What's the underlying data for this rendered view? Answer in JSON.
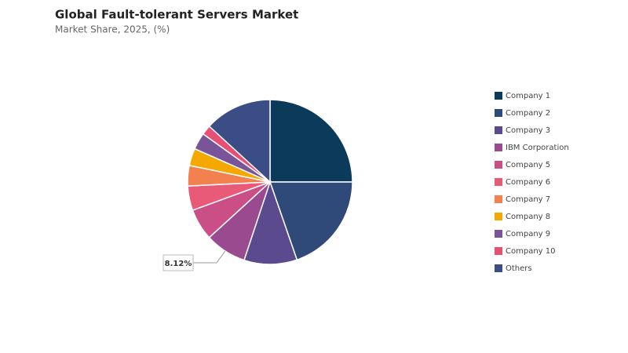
{
  "chart_data": {
    "type": "pie",
    "title": "Global Fault-tolerant Servers Market",
    "subtitle": "Market Share, 2025, (%)",
    "categories": [
      "Company 1",
      "Company 2",
      "Company 3",
      "IBM Corporation",
      "Company 5",
      "Company 6",
      "Company 7",
      "Company 8",
      "Company 9",
      "Company 10",
      "Others"
    ],
    "values": [
      25,
      19.7,
      10.4,
      8.12,
      6.2,
      4.8,
      4,
      3.4,
      3.3,
      1.9,
      13.18
    ],
    "value_labels": [
      null,
      null,
      null,
      "8.12%",
      null,
      null,
      null,
      null,
      null,
      null,
      null
    ],
    "colors": [
      "#0b3a5a",
      "#2f4a78",
      "#5c4a8e",
      "#9a4a8e",
      "#c94f86",
      "#e85a78",
      "#f2814f",
      "#f5a800",
      "#7a5499",
      "#e84f74",
      "#3b4d85"
    ],
    "legend": "right"
  }
}
